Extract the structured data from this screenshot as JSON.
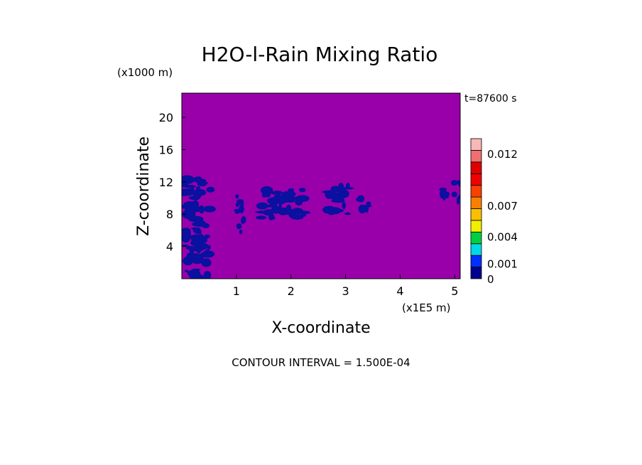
{
  "chart_data": {
    "type": "heatmap",
    "title": "H2O-l-Rain Mixing Ratio",
    "time_label": "t=87600 s",
    "ylabel": "Z-coordinate",
    "yunit": "(x1000 m)",
    "xlabel": "X-coordinate",
    "xunit": "(x1E5 m)",
    "xlim": [
      0,
      5.1
    ],
    "ylim": [
      0,
      23
    ],
    "xticks": [
      1,
      2,
      3,
      4,
      5
    ],
    "yticks": [
      4,
      8,
      12,
      16,
      20
    ],
    "footer": "CONTOUR INTERVAL = 1.500E-04",
    "background_color": "#9900aa",
    "rain_color": "#0a10a0",
    "rain_regions": [
      {
        "x": [
          0.0,
          0.55
        ],
        "z": [
          8.0,
          12.5
        ]
      },
      {
        "x": [
          0.05,
          0.52
        ],
        "z": [
          0.0,
          8.0
        ]
      },
      {
        "x": [
          1.0,
          1.15
        ],
        "z": [
          5.5,
          11.0
        ]
      },
      {
        "x": [
          1.45,
          2.25
        ],
        "z": [
          7.5,
          11.0
        ]
      },
      {
        "x": [
          2.65,
          3.05
        ],
        "z": [
          8.0,
          11.5
        ]
      },
      {
        "x": [
          3.25,
          3.45
        ],
        "z": [
          8.5,
          10.5
        ]
      },
      {
        "x": [
          4.7,
          4.85
        ],
        "z": [
          9.0,
          11.5
        ]
      },
      {
        "x": [
          4.95,
          5.1
        ],
        "z": [
          9.5,
          12.0
        ]
      }
    ],
    "colorbar": {
      "min": 0,
      "max": 0.0135,
      "colors": [
        "#000090",
        "#0030ff",
        "#00d8e8",
        "#00d040",
        "#f0f000",
        "#f8c000",
        "#f88000",
        "#f84000",
        "#f00000",
        "#e00000",
        "#f07070",
        "#f8b8b8"
      ],
      "tick_labels": [
        {
          "value": 0,
          "label": "0"
        },
        {
          "value": 0.001,
          "label": "0.001"
        },
        {
          "value": 0.004,
          "label": "0.004"
        },
        {
          "value": 0.007,
          "label": "0.007"
        },
        {
          "value": 0.012,
          "label": "0.012"
        }
      ]
    }
  }
}
